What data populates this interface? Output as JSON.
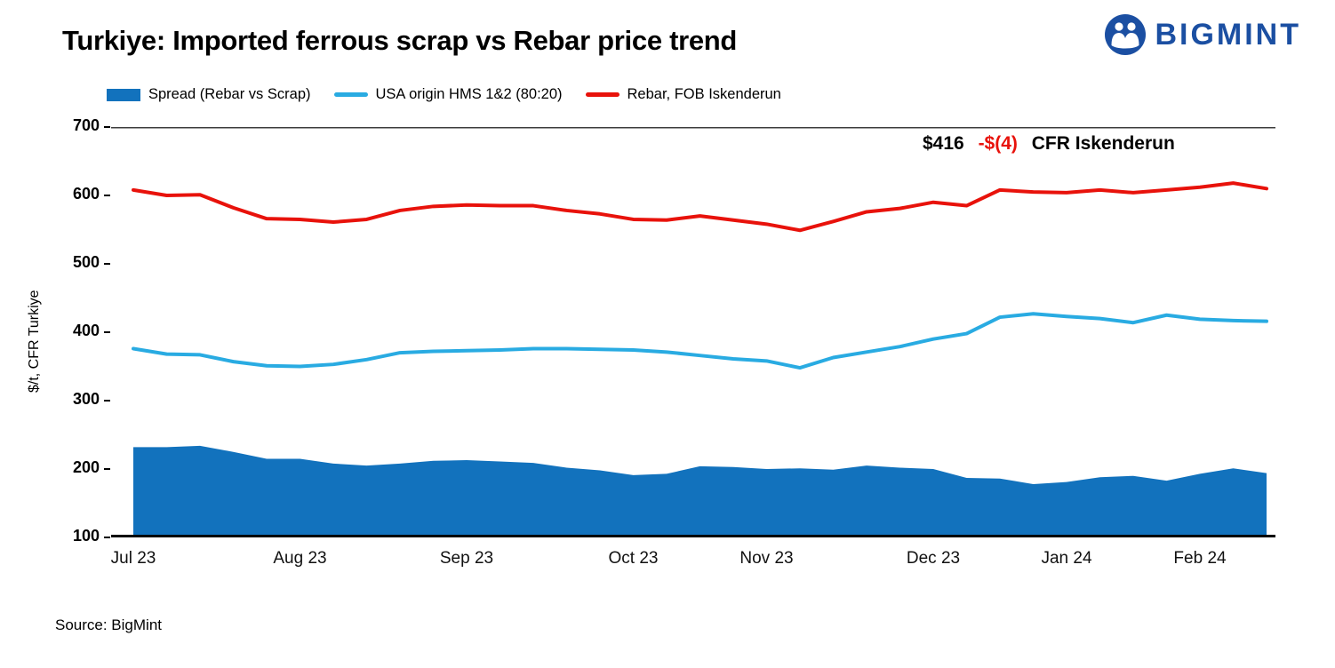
{
  "header": {
    "title": "Turkiye: Imported ferrous scrap vs Rebar price trend",
    "logo_text": "BIGMINT"
  },
  "colors": {
    "spread_area": "#1272bd",
    "scrap_line": "#29abe2",
    "rebar_line": "#e8120b",
    "negative": "#e8120b",
    "logo_blue": "#1b4fa2",
    "axis_line": "#000000",
    "top_gridline": "#3c3c3c"
  },
  "annotation": {
    "price": "$416",
    "change": "-$(4)",
    "suffix": "CFR Iskenderun"
  },
  "axis": {
    "y_title": "$/t, CFR Turkiye"
  },
  "source": "Source: BigMint",
  "chart_data": {
    "type": "area+line",
    "title": "Turkiye: Imported ferrous scrap vs Rebar price trend",
    "x_unit": "weekly points, Jul 2023 - Feb 2024",
    "categories_ticks": [
      "Jul 23",
      "Aug 23",
      "Sep 23",
      "Oct 23",
      "Nov 23",
      "Dec 23",
      "Jan 24",
      "Feb 24"
    ],
    "tick_indices": [
      0,
      5,
      10,
      15,
      19,
      24,
      28,
      32
    ],
    "ylabel": "$/t, CFR Turkiye",
    "ylim": [
      100,
      700
    ],
    "yticks": [
      700,
      600,
      500,
      400,
      300,
      200,
      100
    ],
    "grid": "top line at 700 and baseline axis at 100 only",
    "legend_position": "top",
    "series": [
      {
        "name": "Spread (Rebar vs Scrap)",
        "type": "area",
        "color": "#1272bd",
        "values": [
          232,
          232,
          234,
          225,
          215,
          215,
          208,
          205,
          208,
          212,
          213,
          211,
          209,
          202,
          198,
          191,
          193,
          204,
          203,
          200,
          201,
          199,
          205,
          202,
          200,
          187,
          186,
          178,
          181,
          188,
          190,
          183,
          193,
          201,
          194
        ]
      },
      {
        "name": "USA origin HMS 1&2 (80:20)",
        "type": "line",
        "color": "#29abe2",
        "values": [
          376,
          368,
          367,
          357,
          351,
          350,
          353,
          360,
          370,
          372,
          373,
          374,
          376,
          376,
          375,
          374,
          371,
          366,
          361,
          358,
          348,
          363,
          371,
          379,
          390,
          398,
          422,
          427,
          423,
          420,
          414,
          425,
          419,
          417,
          416
        ]
      },
      {
        "name": "Rebar, FOB Iskenderun",
        "type": "line",
        "color": "#e8120b",
        "values": [
          608,
          600,
          601,
          582,
          566,
          565,
          561,
          565,
          578,
          584,
          586,
          585,
          585,
          578,
          573,
          565,
          564,
          570,
          564,
          558,
          549,
          562,
          576,
          581,
          590,
          585,
          608,
          605,
          604,
          608,
          604,
          608,
          612,
          618,
          610
        ]
      }
    ]
  }
}
